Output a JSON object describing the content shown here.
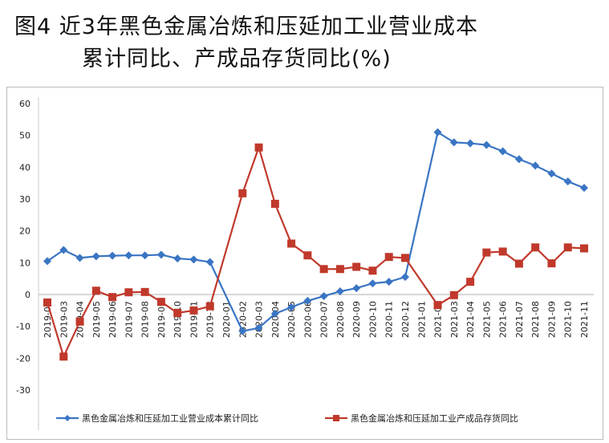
{
  "title": {
    "line1": "图4  近3年黑色金属冶炼和压延加工业营业成本",
    "line2": "累计同比、产成品存货同比(%)"
  },
  "chart_data": {
    "type": "line",
    "title": "图4 近3年黑色金属冶炼和压延加工业营业成本累计同比、产成品存货同比(%)",
    "ylim": [
      -30,
      60
    ],
    "yticks": [
      60,
      50,
      40,
      30,
      20,
      10,
      0,
      -10,
      -20,
      -30
    ],
    "categories": [
      "2019-02",
      "2019-03",
      "2019-04",
      "2019-05",
      "2019-06",
      "2019-07",
      "2019-08",
      "2019-09",
      "2019-10",
      "2019-11",
      "2019-12",
      "2020-01",
      "2020-02",
      "2020-03",
      "2020-04",
      "2020-05",
      "2020-06",
      "2020-07",
      "2020-08",
      "2020-09",
      "2020-10",
      "2020-11",
      "2020-12",
      "2021-01",
      "2021-02",
      "2021-03",
      "2021-04",
      "2021-05",
      "2021-06",
      "2021-07",
      "2021-08",
      "2021-09",
      "2021-10",
      "2021-11"
    ],
    "series": [
      {
        "name": "黑色金属冶炼和压延加工业营业成本累计同比",
        "color": "#3a75c4",
        "marker": "diamond",
        "values": [
          10.5,
          14,
          11.5,
          12,
          12.2,
          12.3,
          12.3,
          12.5,
          11.3,
          11,
          10.2,
          null,
          -11.5,
          -10.5,
          -6,
          -4,
          -2,
          -0.5,
          1,
          2,
          3.5,
          4,
          5.5,
          null,
          51,
          47.8,
          47.5,
          47,
          45,
          42.5,
          40.5,
          38,
          35.5,
          33.5
        ]
      },
      {
        "name": "黑色金属冶炼和压延加工业产成品存货同比",
        "color": "#c0392b",
        "marker": "square",
        "values": [
          -2.5,
          -19.5,
          -8.5,
          1.2,
          -0.8,
          0.7,
          0.8,
          -2.3,
          -5.8,
          -5,
          -3.7,
          null,
          31.8,
          46.2,
          28.5,
          16,
          12.3,
          8,
          8,
          8.7,
          7.5,
          11.8,
          11.5,
          null,
          -3.3,
          -0.2,
          4,
          13.2,
          13.5,
          9.7,
          14.8,
          9.8,
          14.8,
          14.5
        ]
      }
    ],
    "legend": "bottom",
    "grid": false
  }
}
